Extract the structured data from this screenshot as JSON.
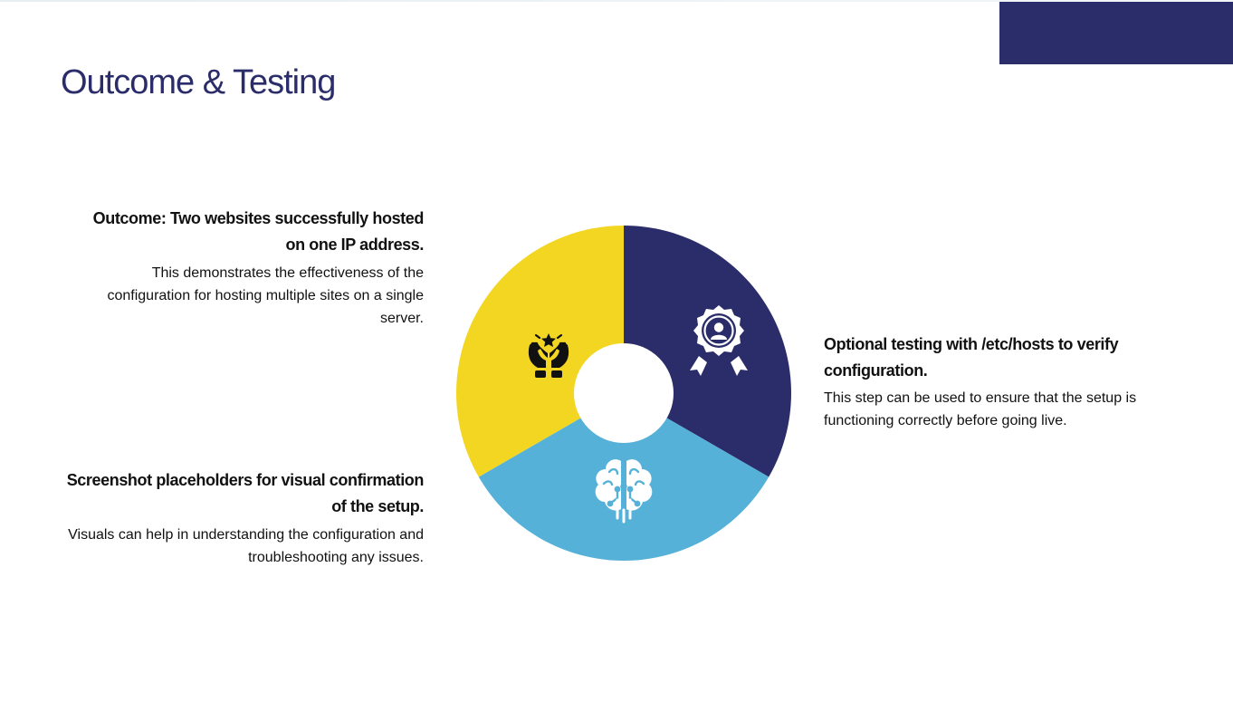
{
  "slide": {
    "title": "Outcome & Testing"
  },
  "colors": {
    "navy": "#2b2d6a",
    "yellow": "#f3d622",
    "light_blue": "#56b1d9",
    "white": "#ffffff"
  },
  "items": [
    {
      "heading": "Outcome: Two websites successfully hosted on one IP address.",
      "body": "This demonstrates the effectiveness of the configuration for hosting multiple sites on a single server.",
      "icon": "hands-star-icon"
    },
    {
      "heading": "Optional testing with /etc/hosts to verify configuration.",
      "body": "This step can be used to ensure that the setup is functioning correctly before going live.",
      "icon": "award-badge-icon"
    },
    {
      "heading": "Screenshot placeholders for visual confirmation of the setup.",
      "body": "Visuals can help in understanding the configuration and troubleshooting any issues.",
      "icon": "brain-circuit-icon"
    }
  ]
}
